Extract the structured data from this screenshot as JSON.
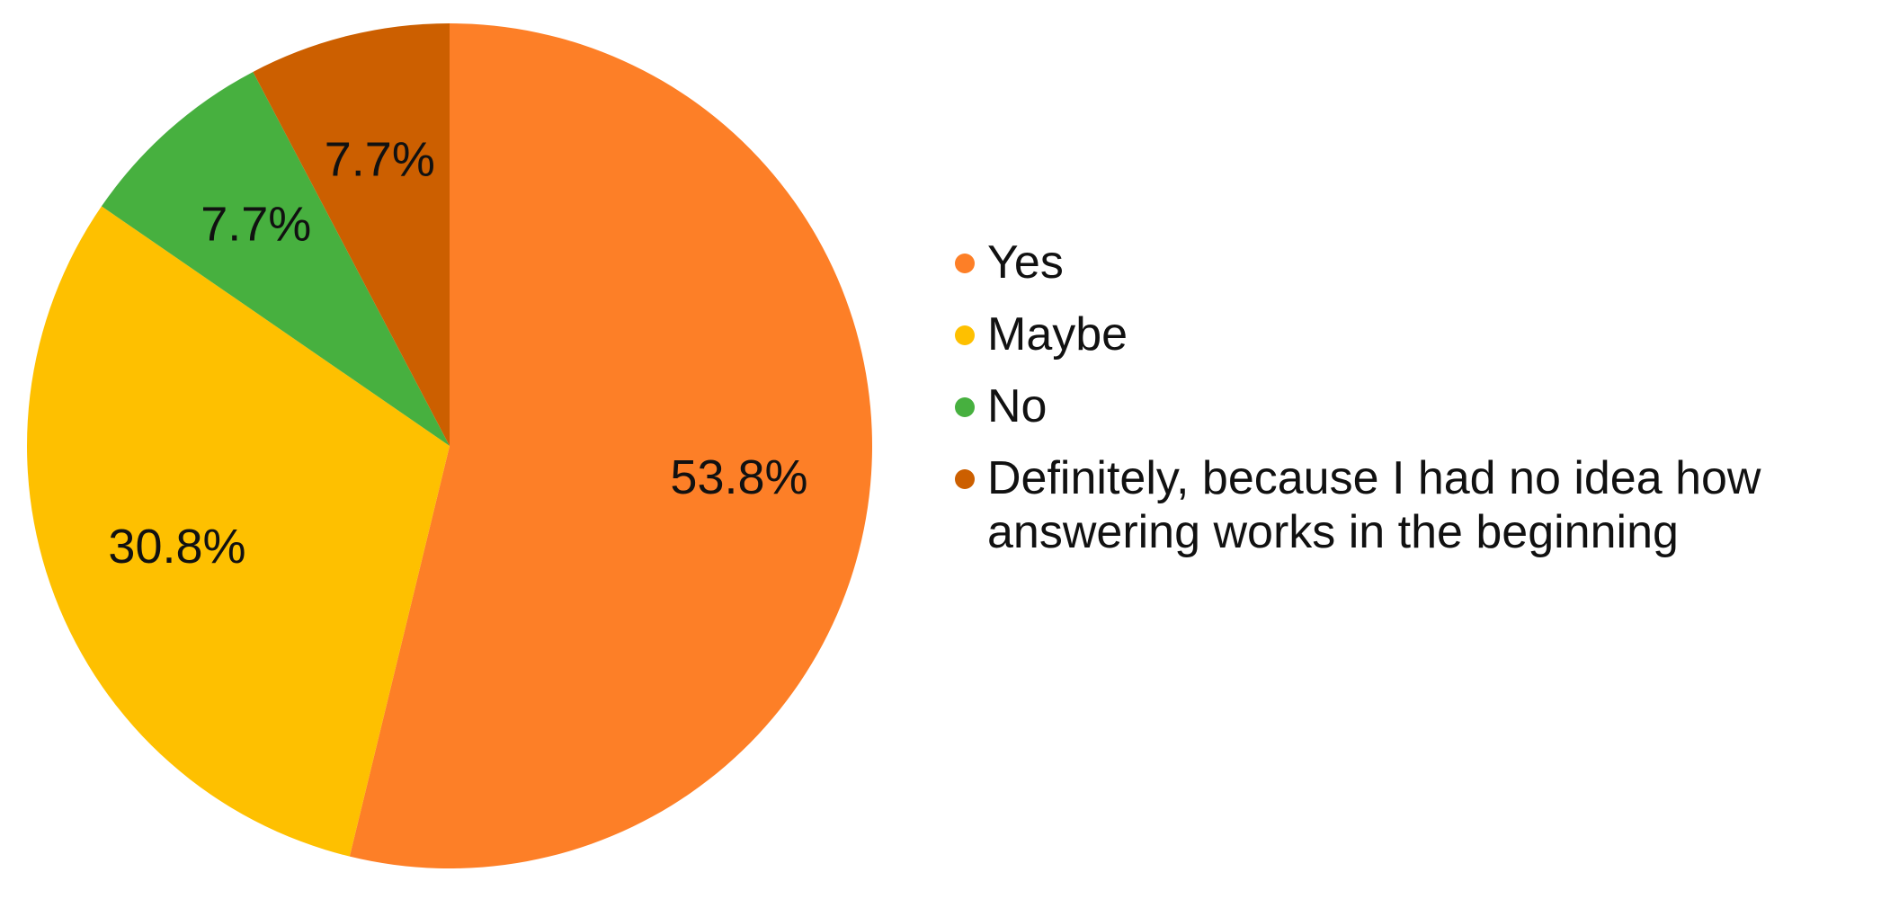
{
  "chart_data": {
    "type": "pie",
    "categories": [
      "Yes",
      "Maybe",
      "No",
      "Definitely, because I had no idea how answering works in the beginning"
    ],
    "values": [
      53.8,
      30.8,
      7.7,
      7.7
    ],
    "value_labels": [
      "53.8%",
      "30.8%",
      "7.7%",
      "7.7%"
    ],
    "colors": [
      "#fd7f27",
      "#fec000",
      "#47b03f",
      "#cc5f00"
    ],
    "legend": "right"
  }
}
